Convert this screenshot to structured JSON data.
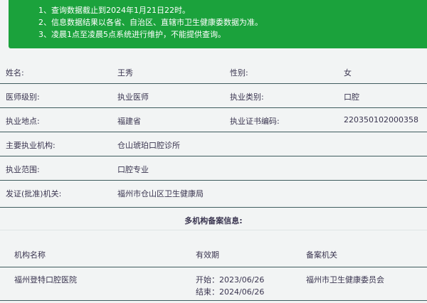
{
  "notice": [
    "1、查询数据截止到2024年1月21日22时。",
    "2、信息数据结果以各省、自治区、直辖市卫生健康委数据为准。",
    "3、凌晨1点至凌晨5点系统进行维护，不能提供查询。"
  ],
  "rows": [
    {
      "l1": "姓名:",
      "v1": "王秀",
      "l2": "性别:",
      "v2": "女"
    },
    {
      "l1": "医师级别:",
      "v1": "执业医师",
      "l2": "执业类别:",
      "v2": "口腔"
    },
    {
      "l1": "执业地点:",
      "v1": "福建省",
      "l2": "执业证书编码:",
      "v2": "220350102000358"
    },
    {
      "l1": "主要执业机构:",
      "v1": "仓山琥珀口腔诊所"
    },
    {
      "l1": "执业范围:",
      "v1": "口腔专业"
    },
    {
      "l1": "发证(批准)机关:",
      "v1": "福州市仓山区卫生健康局"
    }
  ],
  "multi_title": "多机构备案信息:",
  "table": {
    "headers": [
      "机构名称",
      "有效期",
      "备案机关"
    ],
    "rows": [
      {
        "name": "福州登特口腔医院",
        "start": "开始：2023/06/26",
        "end": "结束：2024/06/26",
        "agency": "福州市卫生健康委员会"
      }
    ]
  }
}
